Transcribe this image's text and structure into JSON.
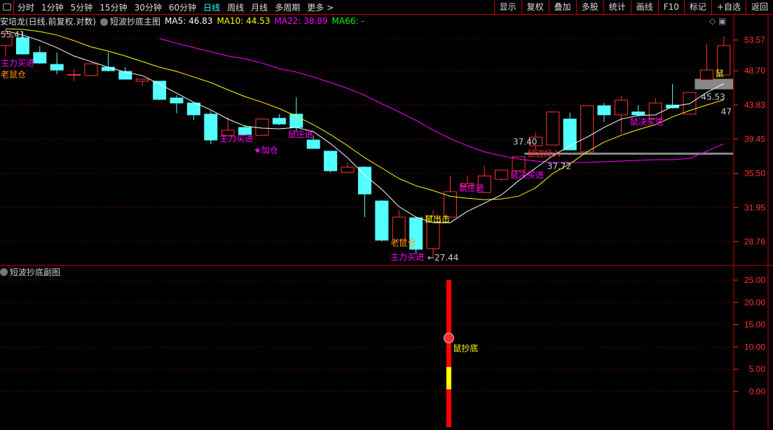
{
  "toolbar": {
    "periods": [
      "分时",
      "1分钟",
      "5分钟",
      "15分钟",
      "30分钟",
      "60分钟",
      "日线",
      "周线",
      "月线",
      "多周期",
      "更多 >"
    ],
    "active": "日线",
    "buttons": [
      "显示",
      "复权",
      "叠加",
      "多股",
      "统计",
      "画线",
      "F10",
      "标记",
      "+自选",
      "返回"
    ]
  },
  "title": {
    "stock": "安培龙(日线.前复权.对数)",
    "indicator": "短波抄底主图",
    "ma5": "MA5: 46.83",
    "ma10": "MA10: 44.53",
    "ma22": "MA22: 38.89",
    "ma66": "MA66: -"
  },
  "sub": {
    "title": "短波抄底副图"
  },
  "colors": {
    "up": "#ff3333",
    "down": "#54ffff",
    "ma5": "#ffffff",
    "ma10": "#ffff00",
    "ma22": "#ff00ff",
    "ma66": "#00ff00",
    "axis": "#ff3333",
    "grid": "#aa0000"
  },
  "chart_data": [
    {
      "type": "candlestick",
      "scale": "log",
      "yticks": [
        "53.57",
        "48.70",
        "43.83",
        "39.45",
        "35.50",
        "31.95",
        "28.76"
      ],
      "ylim": [
        27.0,
        56.5
      ],
      "candles": [
        [
          52.65,
          55.41,
          50.97,
          54.62
        ],
        [
          53.92,
          55.0,
          51.19,
          51.3
        ],
        [
          51.53,
          52.54,
          49.77,
          49.88
        ],
        [
          49.67,
          51.53,
          48.19,
          48.82
        ],
        [
          48.09,
          48.93,
          47.17,
          48.15
        ],
        [
          47.99,
          49.88,
          47.9,
          49.77
        ],
        [
          49.24,
          51.53,
          48.61,
          48.72
        ],
        [
          48.61,
          49.24,
          47.4,
          47.46
        ],
        [
          47.17,
          47.46,
          46.45,
          47.46
        ],
        [
          47.17,
          47.2,
          44.5,
          44.59
        ],
        [
          44.79,
          45.17,
          42.72,
          44.1
        ],
        [
          44.1,
          44.1,
          41.88,
          42.52
        ],
        [
          42.61,
          43.08,
          38.83,
          39.34
        ],
        [
          39.92,
          42.25,
          39.92,
          40.55
        ],
        [
          40.9,
          41.2,
          39.9,
          40.01
        ],
        [
          39.92,
          42.1,
          39.85,
          41.97
        ],
        [
          42.07,
          42.61,
          41.2,
          41.34
        ],
        [
          42.61,
          44.88,
          40.37,
          40.9
        ],
        [
          39.34,
          39.92,
          38.3,
          38.33
        ],
        [
          38.01,
          38.01,
          35.6,
          35.78
        ],
        [
          35.61,
          36.65,
          35.61,
          36.18
        ],
        [
          36.18,
          36.3,
          31.02,
          33.31
        ],
        [
          32.6,
          32.7,
          28.8,
          28.89
        ],
        [
          28.89,
          31.69,
          28.89,
          31.02
        ],
        [
          30.95,
          31.08,
          27.72,
          28.09
        ],
        [
          28.15,
          31.69,
          27.44,
          31.08
        ],
        [
          31.02,
          35.22,
          31.02,
          33.54
        ],
        [
          34.11,
          35.22,
          34.11,
          34.41
        ],
        [
          33.46,
          36.34,
          33.46,
          35.22
        ],
        [
          34.85,
          35.85,
          34.7,
          35.85
        ],
        [
          35.78,
          37.4,
          35.78,
          37.35
        ],
        [
          38.66,
          40.27,
          38.0,
          39.68
        ],
        [
          38.74,
          42.95,
          38.74,
          42.9
        ],
        [
          41.97,
          42.81,
          38.16,
          38.16
        ],
        [
          37.93,
          43.8,
          37.93,
          43.73
        ],
        [
          43.73,
          44.1,
          41.61,
          42.52
        ],
        [
          42.52,
          45.07,
          40.1,
          44.49
        ],
        [
          42.9,
          43.82,
          42.25,
          42.52
        ],
        [
          41.97,
          44.79,
          41.97,
          44.1
        ],
        [
          43.82,
          46.75,
          43.35,
          43.45
        ],
        [
          42.61,
          45.6,
          42.61,
          45.56
        ],
        [
          47.36,
          52.88,
          47.36,
          48.82
        ],
        [
          48.09,
          54.15,
          48.09,
          52.65
        ]
      ],
      "ma5": [
        55.09,
        54.38,
        53.45,
        52.31,
        50.97,
        50.1,
        49.24,
        48.51,
        47.99,
        46.75,
        45.46,
        44.21,
        43.17,
        41.97,
        41.07,
        40.81,
        40.72,
        40.9,
        40.37,
        38.91,
        37.25,
        35.31,
        33.8,
        32.04,
        31.02,
        30.49,
        30.49,
        31.57,
        32.38,
        33.22,
        34.7,
        36.09,
        37.48,
        38.66,
        39.68,
        40.9,
        41.97,
        42.43,
        42.52,
        43.63,
        44.0,
        45.56,
        46.83
      ],
      "ma10": [
        55.46,
        55.33,
        54.97,
        54.38,
        53.45,
        52.42,
        51.75,
        50.97,
        50.1,
        49.24,
        48.61,
        47.78,
        46.97,
        45.93,
        44.97,
        44.21,
        43.35,
        42.34,
        41.25,
        40.01,
        38.66,
        37.25,
        36.09,
        34.94,
        34.17,
        33.66,
        33.08,
        32.87,
        32.73,
        32.8,
        33.08,
        33.95,
        35.49,
        36.55,
        37.93,
        39.09,
        39.92,
        40.63,
        41.25,
        42.25,
        43.08,
        43.82,
        44.53
      ],
      "ma22": [
        null,
        null,
        null,
        null,
        null,
        null,
        null,
        null,
        null,
        53.8,
        53.0,
        52.31,
        51.64,
        50.97,
        50.53,
        49.88,
        49.03,
        48.51,
        47.78,
        46.97,
        46.13,
        45.17,
        44.0,
        42.9,
        41.79,
        40.55,
        39.51,
        38.66,
        37.93,
        37.48,
        37.1,
        36.87,
        36.71,
        36.71,
        36.71,
        36.79,
        36.87,
        36.95,
        37.03,
        37.03,
        37.18,
        38.0,
        38.89
      ],
      "annotations": [
        {
          "i": 1,
          "text": "主力买进",
          "color": "#ff00ff",
          "price": 50.0
        },
        {
          "i": 1,
          "text": "老鼠仓",
          "color": "#ff9900",
          "price": 49.7
        },
        {
          "i": 14,
          "text": "主力买进",
          "color": "#ff00ff",
          "price": 39.6
        },
        {
          "i": 16,
          "text": "★加仓",
          "color": "#ff00ff",
          "price": 39.4
        },
        {
          "i": 18,
          "text": "鼠庄进",
          "color": "#ff00ff",
          "price": 40.1
        },
        {
          "i": 24,
          "text": "老鼠仓",
          "color": "#ff9900",
          "price": 28.7
        },
        {
          "i": 24,
          "text": "主力买进",
          "color": "#ff00ff",
          "price": 28.75
        },
        {
          "i": 26,
          "text": "鼠出击",
          "color": "#ffff00",
          "price": 30.9
        },
        {
          "i": 28,
          "text": "鼠庄进",
          "color": "#ff00ff",
          "price": 34.0
        },
        {
          "i": 31,
          "text": "鼠决买进",
          "color": "#ff00ff",
          "price": 35.4
        },
        {
          "i": 32,
          "text": "鼠波段入",
          "color": "#ff2222",
          "price": 37.8
        },
        {
          "i": 38,
          "text": "鼠决买进",
          "color": "#ff00ff",
          "price": 41.7
        },
        {
          "i": 43,
          "text": "鼠",
          "color": "#ffff00",
          "price": 48.4
        }
      ],
      "price_labels": [
        {
          "i": 1,
          "text": "55.41",
          "price": 55.41
        },
        {
          "i": 26,
          "text": "←27.44",
          "price": 27.44
        },
        {
          "i": 31,
          "text": "37.40",
          "price": 36.9
        },
        {
          "i": 33,
          "text": "37.72",
          "price": 36.9
        },
        {
          "i": 42,
          "text": "45.53",
          "price": 45.0
        },
        {
          "i": 44,
          "text": "47",
          "price": 45.0
        }
      ],
      "levels": [
        {
          "price": 37.72,
          "from": 32,
          "color": "#888888"
        },
        {
          "price": 46.8,
          "from": 42,
          "color": "#888888",
          "band": true
        }
      ]
    },
    {
      "type": "bar",
      "yticks": [
        "25.00",
        "20.00",
        "15.00",
        "10.00",
        "5.00",
        "0.00"
      ],
      "ylim": [
        -8.5,
        27
      ],
      "bar": {
        "i": 27,
        "low": -8,
        "high": 25,
        "highlight": [
          0.5,
          5.5
        ],
        "marker": 12,
        "label": "鼠抄底"
      }
    }
  ]
}
